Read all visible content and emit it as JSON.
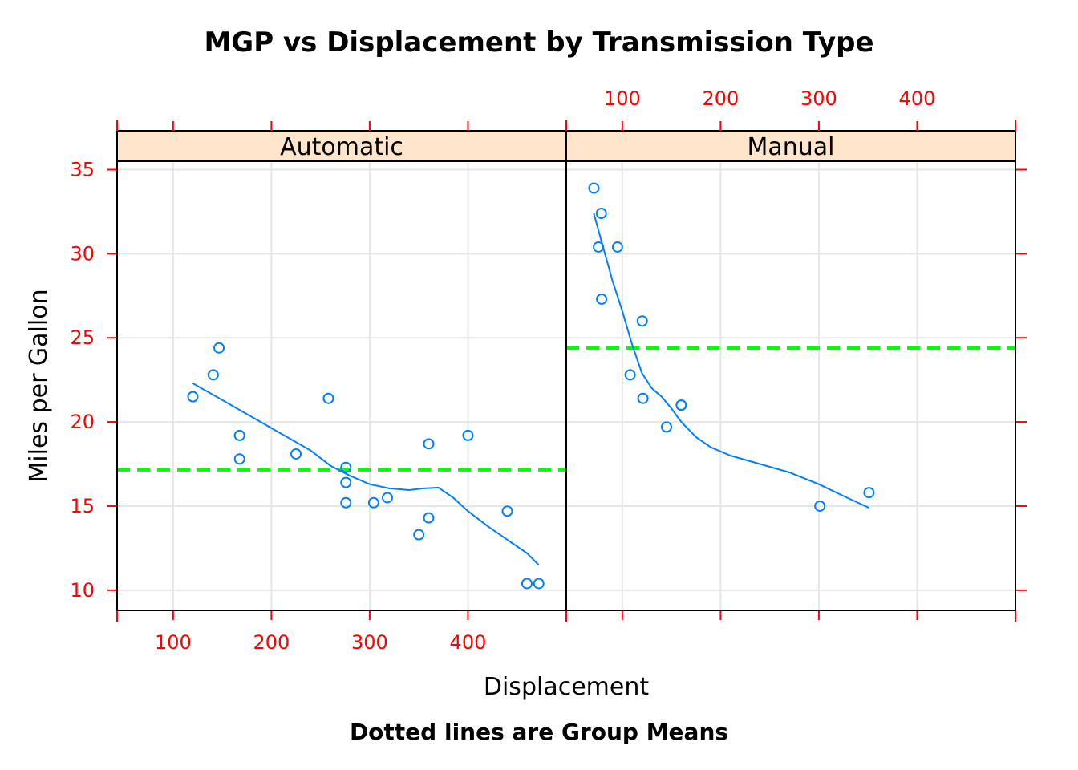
{
  "chart_data": {
    "type": "scatter",
    "title": "MGP vs Displacement by Transmission Type",
    "xlabel": "Displacement",
    "ylabel": "Miles per Gallon",
    "sub": "Dotted lines are Group Means",
    "xlim": [
      43,
      500
    ],
    "ylim": [
      8.8,
      35.5
    ],
    "x_ticks": [
      100,
      200,
      300,
      400
    ],
    "y_ticks": [
      10,
      15,
      20,
      25,
      30,
      35
    ],
    "grid": true,
    "colors": {
      "points": "#0080ff",
      "smooth": "#0080ff",
      "mean_line": "#00ff00",
      "tick": "#ff0000",
      "strip": "#ffe5cc",
      "grid": "#e6e6e6"
    },
    "panels": [
      {
        "name": "Automatic",
        "mean": 17.147,
        "points": [
          {
            "x": 120.1,
            "y": 21.5
          },
          {
            "x": 146.7,
            "y": 24.4
          },
          {
            "x": 140.8,
            "y": 22.8
          },
          {
            "x": 167.6,
            "y": 19.2
          },
          {
            "x": 167.6,
            "y": 17.8
          },
          {
            "x": 225.0,
            "y": 18.1
          },
          {
            "x": 258.0,
            "y": 21.4
          },
          {
            "x": 275.8,
            "y": 17.3
          },
          {
            "x": 275.8,
            "y": 16.4
          },
          {
            "x": 275.8,
            "y": 15.2
          },
          {
            "x": 304.0,
            "y": 15.2
          },
          {
            "x": 318.0,
            "y": 15.5
          },
          {
            "x": 350.0,
            "y": 13.3
          },
          {
            "x": 360.0,
            "y": 18.7
          },
          {
            "x": 360.0,
            "y": 14.3
          },
          {
            "x": 400.0,
            "y": 19.2
          },
          {
            "x": 440.0,
            "y": 14.7
          },
          {
            "x": 460.0,
            "y": 10.4
          },
          {
            "x": 472.0,
            "y": 10.4
          }
        ],
        "smooth": [
          {
            "x": 120,
            "y": 22.3
          },
          {
            "x": 150,
            "y": 21.3
          },
          {
            "x": 180,
            "y": 20.3
          },
          {
            "x": 210,
            "y": 19.3
          },
          {
            "x": 240,
            "y": 18.3
          },
          {
            "x": 260,
            "y": 17.4
          },
          {
            "x": 280,
            "y": 16.8
          },
          {
            "x": 300,
            "y": 16.3
          },
          {
            "x": 320,
            "y": 16.05
          },
          {
            "x": 340,
            "y": 15.95
          },
          {
            "x": 355,
            "y": 16.05
          },
          {
            "x": 370,
            "y": 16.1
          },
          {
            "x": 385,
            "y": 15.5
          },
          {
            "x": 400,
            "y": 14.7
          },
          {
            "x": 420,
            "y": 13.8
          },
          {
            "x": 440,
            "y": 13.0
          },
          {
            "x": 460,
            "y": 12.2
          },
          {
            "x": 472,
            "y": 11.5
          }
        ]
      },
      {
        "name": "Manual",
        "mean": 24.392,
        "points": [
          {
            "x": 71.1,
            "y": 33.9
          },
          {
            "x": 78.7,
            "y": 32.4
          },
          {
            "x": 75.7,
            "y": 30.4
          },
          {
            "x": 95.1,
            "y": 30.4
          },
          {
            "x": 79.0,
            "y": 27.3
          },
          {
            "x": 120.3,
            "y": 26.0
          },
          {
            "x": 108.0,
            "y": 22.8
          },
          {
            "x": 121.0,
            "y": 21.4
          },
          {
            "x": 160.0,
            "y": 21.0
          },
          {
            "x": 160.0,
            "y": 21.0
          },
          {
            "x": 145.0,
            "y": 19.7
          },
          {
            "x": 301.0,
            "y": 15.0
          },
          {
            "x": 351.0,
            "y": 15.8
          }
        ],
        "smooth": [
          {
            "x": 71,
            "y": 32.4
          },
          {
            "x": 80,
            "y": 30.5
          },
          {
            "x": 90,
            "y": 28.4
          },
          {
            "x": 100,
            "y": 26.6
          },
          {
            "x": 110,
            "y": 24.6
          },
          {
            "x": 120,
            "y": 22.9
          },
          {
            "x": 130,
            "y": 22.0
          },
          {
            "x": 140,
            "y": 21.5
          },
          {
            "x": 150,
            "y": 20.8
          },
          {
            "x": 160,
            "y": 20.0
          },
          {
            "x": 175,
            "y": 19.1
          },
          {
            "x": 190,
            "y": 18.5
          },
          {
            "x": 210,
            "y": 18.0
          },
          {
            "x": 240,
            "y": 17.5
          },
          {
            "x": 270,
            "y": 17.0
          },
          {
            "x": 300,
            "y": 16.3
          },
          {
            "x": 325,
            "y": 15.6
          },
          {
            "x": 351,
            "y": 14.9
          }
        ]
      }
    ]
  }
}
